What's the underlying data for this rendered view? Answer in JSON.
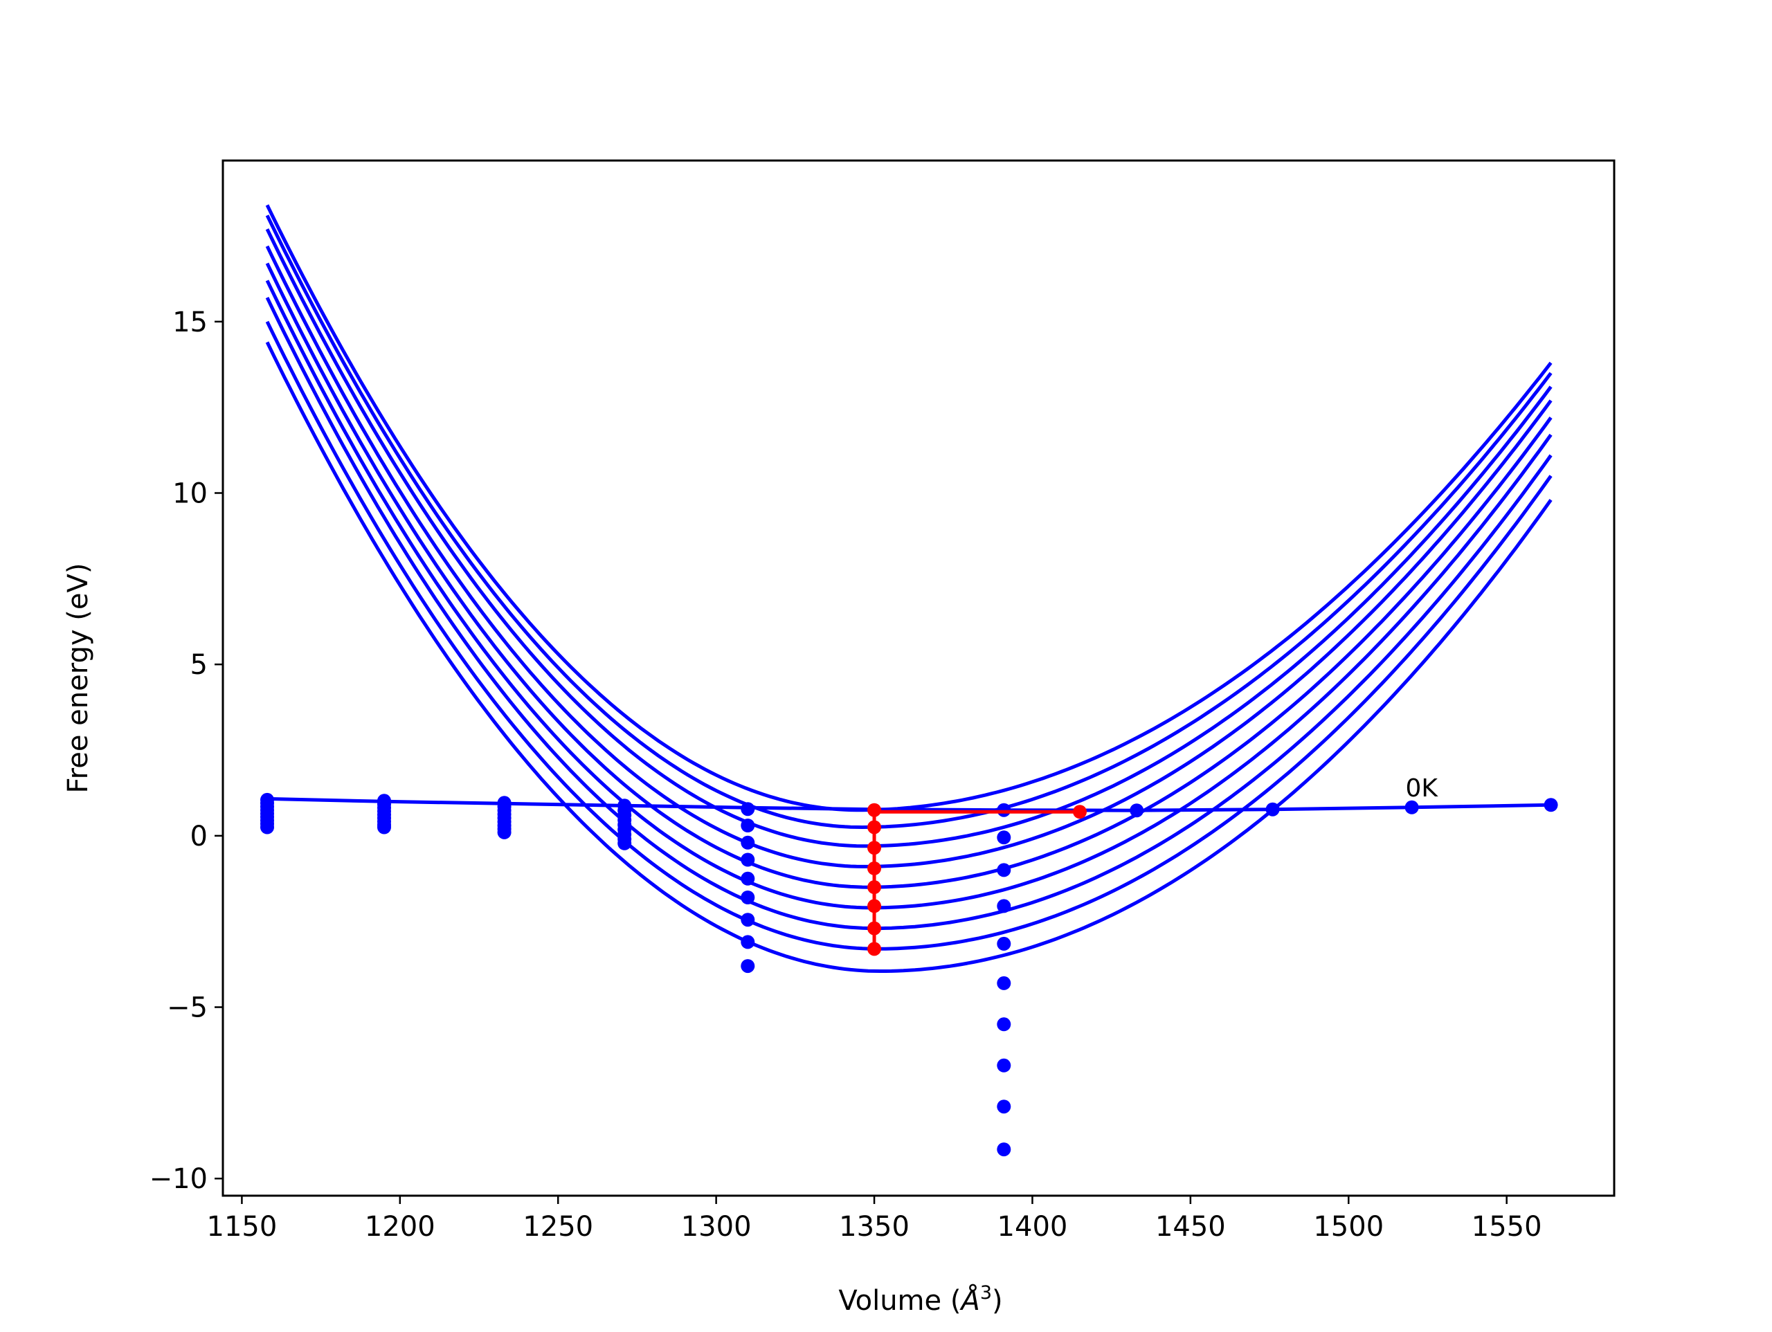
{
  "chart_data": {
    "type": "line",
    "title": "",
    "xlabel": "Volume (",
    "xlabel_symbol": "Å",
    "xlabel_exp": "3",
    "xlabel_close": ")",
    "ylabel": "Free energy (eV)",
    "xlim": [
      1144,
      1584
    ],
    "ylim": [
      -10.5,
      19.7
    ],
    "xticks": [
      1150,
      1200,
      1250,
      1300,
      1350,
      1400,
      1450,
      1500,
      1550
    ],
    "xtick_labels": [
      "1150",
      "1200",
      "1250",
      "1300",
      "1350",
      "1400",
      "1450",
      "1500",
      "1550"
    ],
    "yticks": [
      -10,
      -5,
      0,
      5,
      10,
      15
    ],
    "ytick_labels": [
      "−10",
      "−5",
      "0",
      "5",
      "10",
      "15"
    ],
    "grid": false,
    "legend": "none",
    "colors": {
      "curves": "#0000ff",
      "highlight": "#ff0000"
    },
    "fit_curves": {
      "x_range": [
        1158,
        1564
      ],
      "curves": [
        {
          "min_x": 1345,
          "min_y": 0.75,
          "y_at_start": 18.4,
          "y_at_end": 13.8
        },
        {
          "min_x": 1346,
          "min_y": 0.25,
          "y_at_start": 18.1,
          "y_at_end": 13.5
        },
        {
          "min_x": 1347,
          "min_y": -0.3,
          "y_at_start": 17.7,
          "y_at_end": 13.1
        },
        {
          "min_x": 1347,
          "min_y": -0.9,
          "y_at_start": 17.2,
          "y_at_end": 12.7
        },
        {
          "min_x": 1348,
          "min_y": -1.5,
          "y_at_start": 16.7,
          "y_at_end": 12.2
        },
        {
          "min_x": 1349,
          "min_y": -2.1,
          "y_at_start": 16.2,
          "y_at_end": 11.7
        },
        {
          "min_x": 1350,
          "min_y": -2.7,
          "y_at_start": 15.7,
          "y_at_end": 11.1
        },
        {
          "min_x": 1351,
          "min_y": -3.3,
          "y_at_start": 15.0,
          "y_at_end": 10.5
        },
        {
          "min_x": 1352,
          "min_y": -3.95,
          "y_at_start": 14.4,
          "y_at_end": 9.8
        }
      ]
    },
    "minimum_line": {
      "x": [
        1158,
        1195,
        1233,
        1271,
        1310,
        1350,
        1391,
        1433,
        1476,
        1520,
        1564
      ],
      "y": [
        1.08,
        1.0,
        0.94,
        0.88,
        0.82,
        0.77,
        0.75,
        0.74,
        0.77,
        0.83,
        0.9
      ]
    },
    "scatter_columns": [
      {
        "x": 1158,
        "y": [
          1.05,
          0.95,
          0.85,
          0.75,
          0.65,
          0.55,
          0.45,
          0.35,
          0.25
        ]
      },
      {
        "x": 1195,
        "y": [
          1.02,
          0.92,
          0.82,
          0.72,
          0.62,
          0.52,
          0.42,
          0.32,
          0.25
        ]
      },
      {
        "x": 1233,
        "y": [
          0.96,
          0.85,
          0.74,
          0.63,
          0.52,
          0.41,
          0.3,
          0.2,
          0.1
        ]
      },
      {
        "x": 1271,
        "y": [
          0.88,
          0.74,
          0.6,
          0.46,
          0.32,
          0.18,
          0.04,
          -0.1,
          -0.22
        ]
      },
      {
        "x": 1310,
        "y": [
          0.78,
          0.3,
          -0.2,
          -0.7,
          -1.25,
          -1.8,
          -2.45,
          -3.1,
          -3.8
        ]
      },
      {
        "x": 1391,
        "y": [
          0.75,
          -0.05,
          -1.0,
          -2.05,
          -3.15,
          -4.3,
          -5.5,
          -6.7,
          -7.9,
          -9.15
        ]
      },
      {
        "x": 1433,
        "y": [
          0.74
        ]
      },
      {
        "x": 1476,
        "y": [
          0.77
        ]
      },
      {
        "x": 1520,
        "y": [
          0.83
        ]
      },
      {
        "x": 1564,
        "y": [
          0.9
        ]
      }
    ],
    "highlight_points": {
      "x": 1350,
      "y": [
        0.75,
        0.25,
        -0.35,
        -0.95,
        -1.5,
        -2.05,
        -2.7,
        -3.3
      ]
    },
    "highlight_horizontal": {
      "x": [
        1350,
        1415
      ],
      "y": [
        0.7,
        0.7
      ]
    },
    "annotations": [
      {
        "text": "0K",
        "x": 1518,
        "y": 1.15
      }
    ]
  }
}
